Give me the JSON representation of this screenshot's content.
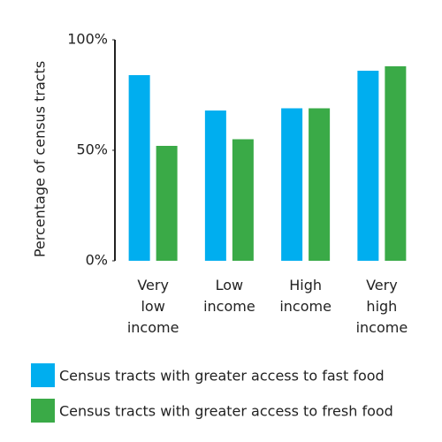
{
  "chart_data": {
    "type": "bar",
    "y_label": "Percentage of census tracts",
    "categories": [
      "Very\nlow\nincome",
      "Low\nincome",
      "High\nincome",
      "Very\nhigh\nincome"
    ],
    "series": [
      {
        "name": "Census tracts with greater access to fast food",
        "color": "#00aeef",
        "values": [
          84,
          68,
          69,
          86
        ]
      },
      {
        "name": "Census tracts with greater access to fresh food",
        "color": "#3aaa47",
        "values": [
          52,
          55,
          69,
          88
        ]
      }
    ],
    "ylim": [
      0,
      100
    ],
    "yticks": [
      {
        "value": 0,
        "label": "0%"
      },
      {
        "value": 50,
        "label": "50%"
      },
      {
        "value": 100,
        "label": "100%"
      }
    ],
    "grid": false
  }
}
